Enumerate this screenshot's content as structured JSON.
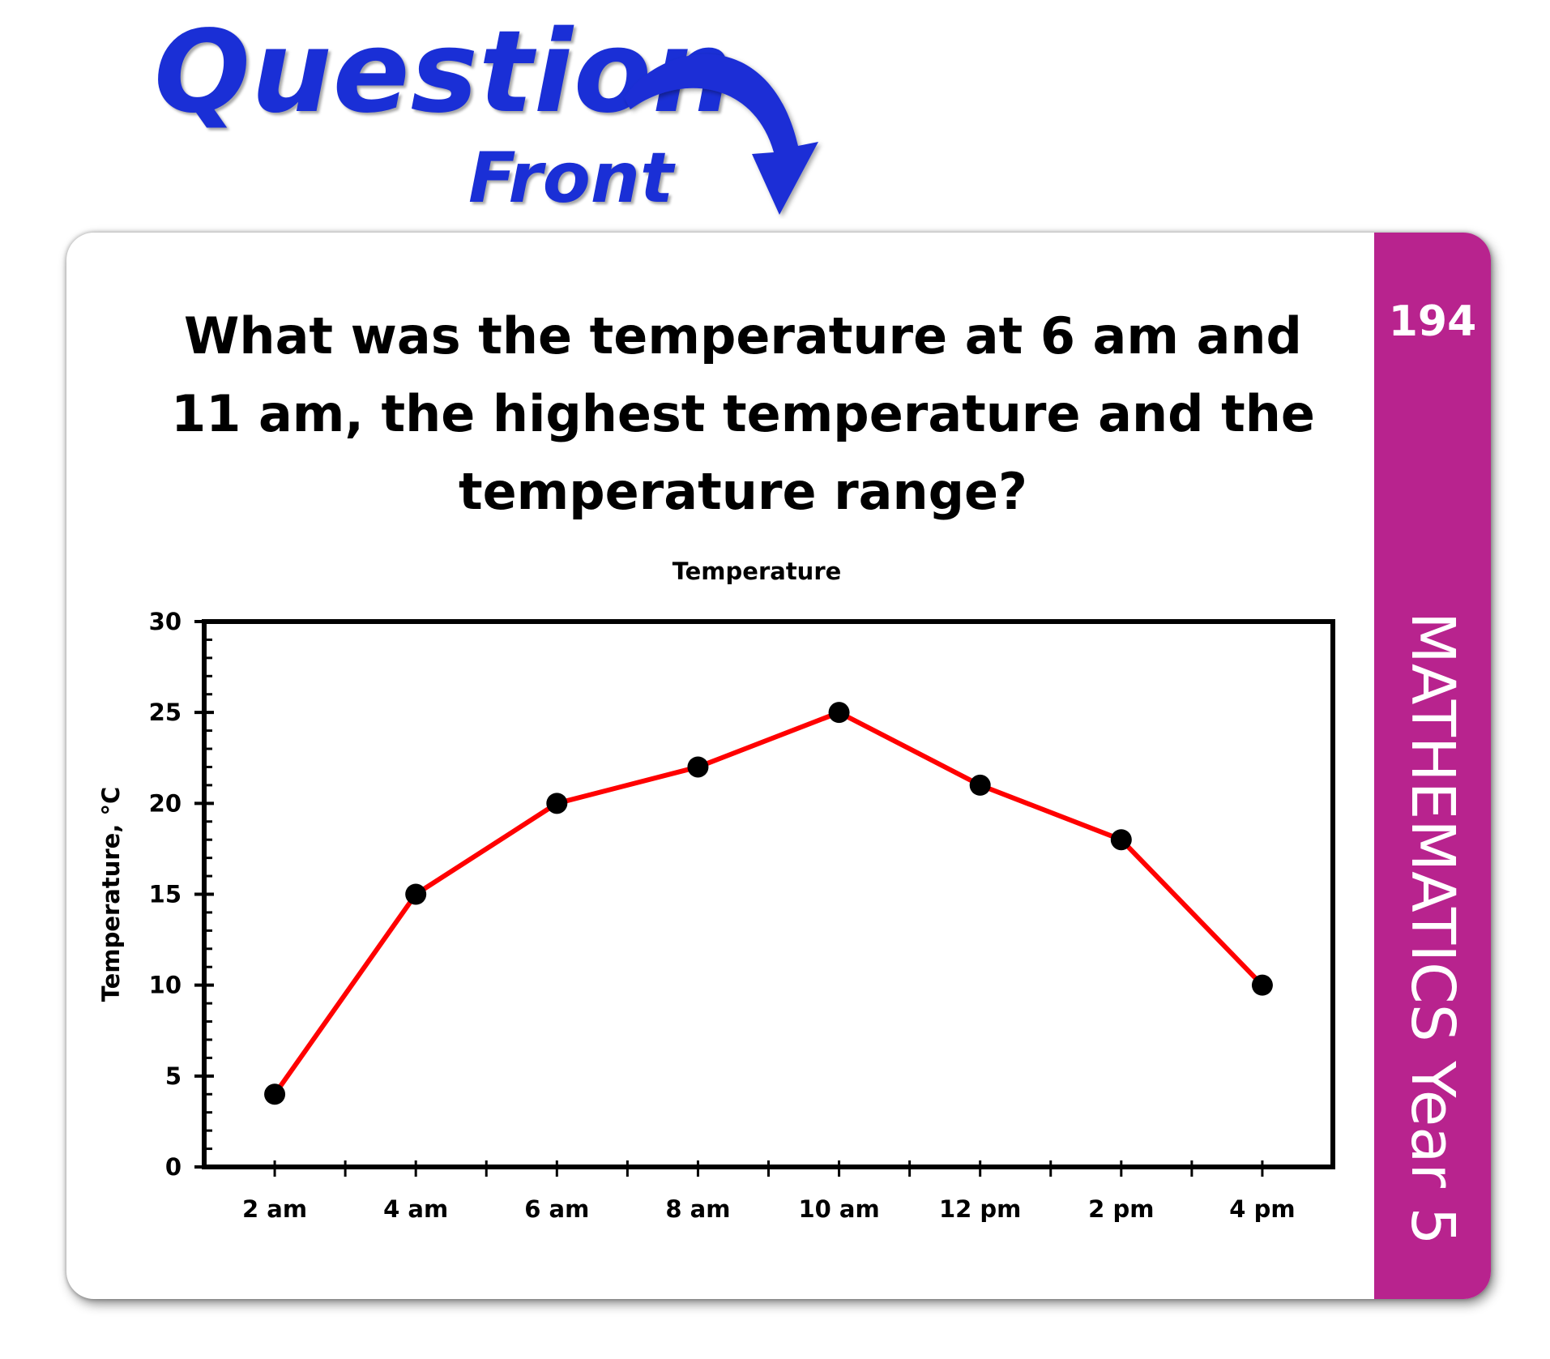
{
  "header": {
    "question_word": "Question",
    "front_word": "Front",
    "accent_color": "#1a2fd6"
  },
  "card": {
    "number": "194",
    "subject": "MATHEMATICS Year 5",
    "band_color": "#b8238e",
    "question_text": "What was the temperature at 6 am and 11 am, the highest temperature and the temperature range?"
  },
  "chart_data": {
    "type": "line",
    "title": "Temperature",
    "xlabel": "",
    "ylabel": "Temperature, °C",
    "categories": [
      "2 am",
      "4 am",
      "6 am",
      "8 am",
      "10 am",
      "12 pm",
      "2 pm",
      "4 pm"
    ],
    "series": [
      {
        "values": [
          4,
          15,
          20,
          22,
          25,
          21,
          18,
          10
        ]
      }
    ],
    "ylim": [
      0,
      30
    ],
    "ytick_values": [
      0,
      5,
      10,
      15,
      20,
      25,
      30
    ],
    "ytick_labels": [
      "0",
      "5",
      "10",
      "15",
      "20",
      "25",
      "30"
    ],
    "grid": false,
    "legend": "none",
    "line_color": "#ff0000",
    "marker_color": "#000000"
  }
}
